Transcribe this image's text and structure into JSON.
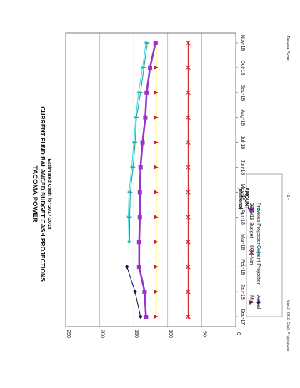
{
  "footer": {
    "left": "March 2018 Cash Projections",
    "center": "- 1 -",
    "right": "Tacoma Power"
  },
  "chart_data": {
    "type": "line",
    "title": "TACOMA POWER",
    "subtitle": "CURRENT FUND BALANCED BUDGET CASH PROJECTIONS",
    "subtitle2": "Estimated Cash for 2017-2018",
    "xlabel": "",
    "ylabel": "AMOUNT",
    "ylabel2": "(millions)",
    "categories": [
      "Dec-17",
      "Jan-18",
      "Feb-18",
      "Mar-18",
      "Apr-18",
      "May-18",
      "Jun-18",
      "Jul-18",
      "Aug-18",
      "Sep-18",
      "Oct-18",
      "Nov-18"
    ],
    "ylim": [
      0,
      250
    ],
    "yticks": [
      0,
      50,
      100,
      150,
      200,
      250
    ],
    "grid": true,
    "legend_position": "bottom",
    "series": [
      {
        "name": "Actual",
        "color": "#1a1a5e",
        "marker": "diamond",
        "values": [
          140,
          148,
          160,
          null,
          null,
          null,
          null,
          null,
          null,
          null,
          null,
          null
        ]
      },
      {
        "name": "Min",
        "color": "#ffee00",
        "marker": "triangle",
        "values": [
          117,
          117,
          117,
          117,
          117,
          117,
          117,
          117,
          117,
          117,
          117,
          117
        ]
      },
      {
        "name": "Current Projection",
        "color": "#30a0a0",
        "marker": "dash",
        "values": [
          null,
          null,
          null,
          156,
          156,
          155,
          151,
          148,
          146,
          140,
          135,
          130
        ]
      },
      {
        "name": "Previous Projection",
        "color": "#33e0e0",
        "marker": "circle",
        "values": [
          null,
          null,
          null,
          157,
          158,
          157,
          153,
          150,
          147,
          143,
          137,
          132
        ]
      },
      {
        "name": "60% Min",
        "color": "#cc2222",
        "marker": "star",
        "values": [
          70,
          70,
          70,
          70,
          70,
          70,
          70,
          70,
          70,
          70,
          70,
          70
        ]
      },
      {
        "name": "2017/18 Budget",
        "color": "#9933cc",
        "marker": "square",
        "values": [
          132,
          134,
          142,
          142,
          141,
          141,
          140,
          137,
          133,
          131,
          126,
          118
        ]
      }
    ]
  }
}
